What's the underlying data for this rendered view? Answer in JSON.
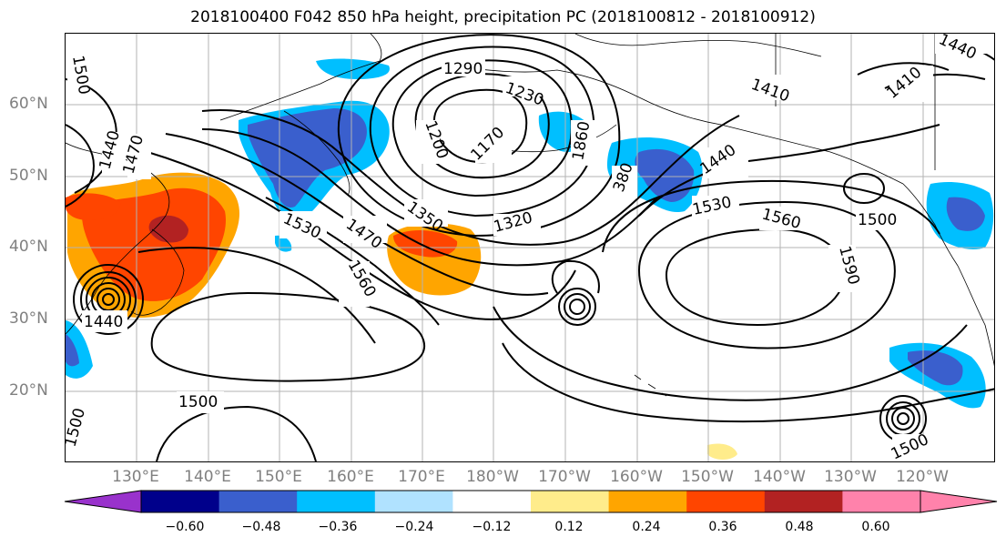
{
  "title": "2018100400 F042 850 hPa height, precipitation PC (2018100812 - 2018100912)",
  "lat_labels": [
    "60°N",
    "50°N",
    "40°N",
    "30°N",
    "20°N"
  ],
  "lon_labels": [
    "130°E",
    "140°E",
    "150°E",
    "160°E",
    "170°E",
    "180°W",
    "170°W",
    "160°W",
    "150°W",
    "140°W",
    "130°W",
    "120°W"
  ],
  "contour_labels": [
    "1500",
    "1440",
    "1470",
    "1290",
    "1230",
    "1200",
    "1170",
    "1860",
    "380",
    "1440",
    "1410",
    "1410",
    "1440",
    "1530",
    "1470",
    "1350",
    "1320",
    "1560",
    "1530",
    "1560",
    "1590",
    "1500",
    "1440",
    "1500",
    "1500",
    "1500"
  ],
  "colorbar": {
    "colors": [
      "#9932cc",
      "#00008b",
      "#3a5fcd",
      "#00bfff",
      "#b0e2ff",
      "#ffffff",
      "#ffec8b",
      "#ffa500",
      "#ff4500",
      "#b22222",
      "#ff82ab"
    ],
    "tick_labels": [
      "−0.60",
      "−0.48",
      "−0.36",
      "−0.24",
      "−0.12",
      "0.12",
      "0.24",
      "0.36",
      "0.48",
      "0.60"
    ]
  },
  "colors": {
    "gridline": "#b3b3b3",
    "axis_label": "#808080",
    "coast": "#000000"
  }
}
